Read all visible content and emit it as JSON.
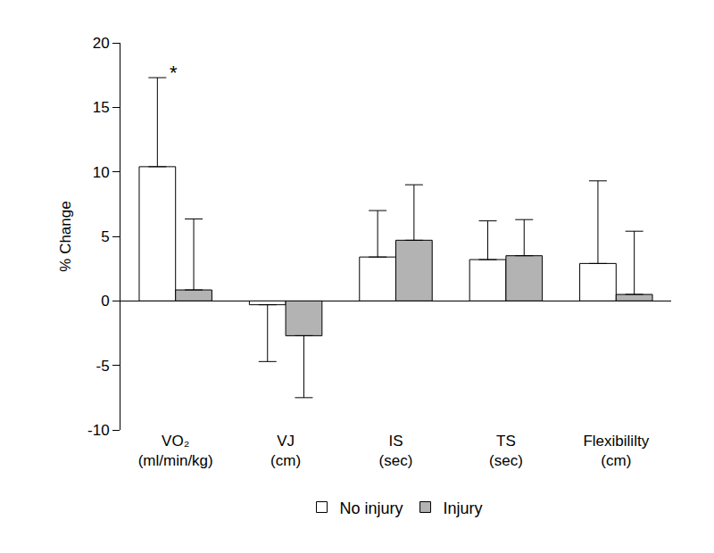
{
  "chart_data": {
    "type": "bar",
    "y_label": "% Change",
    "categories": [
      "VO₂\n(ml/min/kg)",
      "VJ\n(cm)",
      "IS\n(sec)",
      "TS\n(sec)",
      "Flexibililty\n(cm)"
    ],
    "series": [
      {
        "name": "No injury",
        "color": "#ffffff",
        "values": [
          10.4,
          -0.3,
          3.4,
          3.2,
          2.9
        ],
        "error": [
          6.9,
          4.4,
          3.6,
          3.0,
          6.4
        ]
      },
      {
        "name": "Injury",
        "color": "#b3b3b3",
        "values": [
          0.85,
          -2.7,
          4.7,
          3.5,
          0.5
        ],
        "error": [
          5.5,
          4.8,
          4.3,
          2.8,
          4.9
        ]
      }
    ],
    "ylim": [
      -10,
      20
    ],
    "yticks": [
      -10,
      -5,
      0,
      5,
      10,
      15,
      20
    ],
    "grid": false,
    "legend": "bottom",
    "annotations": [
      {
        "text": "*",
        "category": "VO₂\n(ml/min/kg)",
        "series": "No injury",
        "y": 17.7
      }
    ]
  }
}
